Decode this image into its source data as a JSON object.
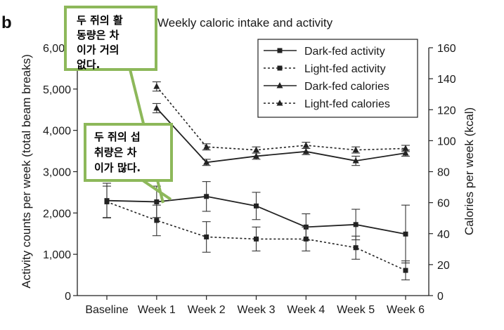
{
  "chart_data": {
    "type": "line",
    "panel_label": "b",
    "title": "Weekly caloric intake and activity",
    "categories": [
      "Baseline",
      "Week 1",
      "Week 2",
      "Week 3",
      "Week 4",
      "Week 5",
      "Week 6"
    ],
    "y_left": {
      "label": "Activity counts per week (total beam breaks)",
      "min": 0,
      "max": 6000,
      "ticks": [
        0,
        1000,
        2000,
        3000,
        4000,
        5000,
        6000
      ],
      "tick_labels": [
        "0",
        "1,000",
        "2,000",
        "3,000",
        "4,000",
        "5,000",
        "6,000"
      ]
    },
    "y_right": {
      "label": "Calories per week (kcal)",
      "min": 0,
      "max": 160,
      "ticks": [
        0,
        20,
        40,
        60,
        80,
        100,
        120,
        140,
        160
      ],
      "tick_labels": [
        "0",
        "20",
        "40",
        "60",
        "80",
        "100",
        "120",
        "140",
        "160"
      ]
    },
    "series": [
      {
        "name": "Dark-fed activity",
        "axis": "left",
        "marker": "square",
        "dash": false,
        "values": [
          2300,
          2270,
          2400,
          2170,
          1660,
          1720,
          1490
        ],
        "errors": [
          420,
          380,
          360,
          330,
          320,
          370,
          700
        ]
      },
      {
        "name": "Light-fed activity",
        "axis": "left",
        "marker": "square",
        "dash": true,
        "values": [
          2270,
          1820,
          1420,
          1370,
          1370,
          1160,
          610
        ],
        "errors": [
          380,
          370,
          370,
          290,
          290,
          280,
          230
        ]
      },
      {
        "name": "Dark-fed calories",
        "axis": "right",
        "marker": "triangle",
        "dash": false,
        "values": [
          null,
          121,
          86,
          90,
          93,
          87,
          92
        ],
        "errors": [
          null,
          3,
          2,
          2,
          2,
          3,
          2
        ]
      },
      {
        "name": "Light-fed calories",
        "axis": "right",
        "marker": "triangle",
        "dash": true,
        "values": [
          null,
          135,
          96,
          94,
          97,
          94,
          95
        ],
        "errors": [
          null,
          3,
          2,
          2,
          2,
          2,
          2
        ]
      }
    ],
    "legend_position": "top-right",
    "grid": false
  },
  "annotations": [
    {
      "lines": [
        "두 쥐의 활",
        "동량은 차",
        "이가 거의",
        "없다."
      ]
    },
    {
      "lines": [
        "두 쥐의 섭",
        "취량은 차",
        "이가 많다."
      ]
    }
  ]
}
